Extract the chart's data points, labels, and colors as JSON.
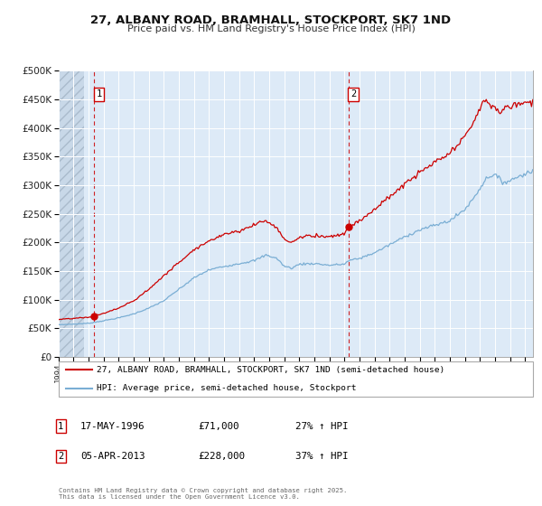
{
  "title_line1": "27, ALBANY ROAD, BRAMHALL, STOCKPORT, SK7 1ND",
  "title_line2": "Price paid vs. HM Land Registry's House Price Index (HPI)",
  "legend_line1": "27, ALBANY ROAD, BRAMHALL, STOCKPORT, SK7 1ND (semi-detached house)",
  "legend_line2": "HPI: Average price, semi-detached house, Stockport",
  "annotation1_date": "17-MAY-1996",
  "annotation1_price": "£71,000",
  "annotation1_hpi": "27% ↑ HPI",
  "annotation2_date": "05-APR-2013",
  "annotation2_price": "£228,000",
  "annotation2_hpi": "37% ↑ HPI",
  "sale1_year": 1996.38,
  "sale1_price": 71000,
  "sale2_year": 2013.26,
  "sale2_price": 228000,
  "property_color": "#cc0000",
  "hpi_color": "#7aaed4",
  "plot_bg": "#ddeaf7",
  "grid_color": "#ffffff",
  "vline_color": "#cc0000",
  "ylim_max": 500000,
  "xlim_min": 1994.0,
  "xlim_max": 2025.5,
  "footnote": "Contains HM Land Registry data © Crown copyright and database right 2025.\nThis data is licensed under the Open Government Licence v3.0."
}
